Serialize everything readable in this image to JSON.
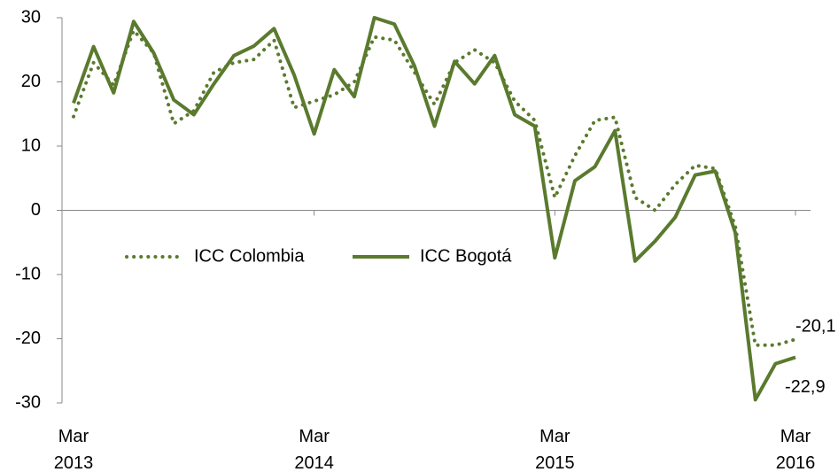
{
  "chart_data": {
    "type": "line",
    "categories": [
      "Mar 2013",
      null,
      null,
      null,
      null,
      null,
      null,
      null,
      null,
      null,
      null,
      null,
      "Mar 2014",
      null,
      null,
      null,
      null,
      null,
      null,
      null,
      null,
      null,
      null,
      null,
      "Mar 2015",
      null,
      null,
      null,
      null,
      null,
      null,
      null,
      null,
      null,
      null,
      null,
      "Mar 2016"
    ],
    "series": [
      {
        "name": "ICC Colombia",
        "color": "#5a7a2e",
        "style": "dotted",
        "values": [
          14.6,
          23,
          19.5,
          28,
          24.5,
          13.5,
          15.5,
          21.5,
          23,
          23.5,
          26.5,
          16,
          17,
          18,
          20,
          27,
          26.5,
          21.5,
          16.5,
          23,
          25,
          23,
          17,
          14,
          2,
          8.5,
          14,
          14.5,
          2,
          0,
          4,
          7,
          6.5,
          -2.5,
          -21,
          -21,
          -20.1
        ],
        "value_labels": [
          null,
          null,
          null,
          null,
          null,
          null,
          null,
          null,
          null,
          null,
          null,
          null,
          null,
          null,
          null,
          null,
          null,
          null,
          null,
          null,
          null,
          null,
          null,
          null,
          null,
          null,
          null,
          null,
          null,
          null,
          null,
          null,
          null,
          null,
          null,
          null,
          "-20,1"
        ]
      },
      {
        "name": "ICC Bogotá",
        "color": "#5a7a2e",
        "style": "solid",
        "values": [
          16.7,
          25.5,
          18.3,
          29.4,
          24.5,
          17.2,
          14.9,
          19.7,
          24.1,
          25.6,
          28.3,
          21.1,
          11.9,
          21.9,
          17.7,
          30,
          29,
          22.5,
          13.1,
          23.2,
          19.7,
          24.1,
          14.9,
          13.1,
          -7.4,
          4.6,
          6.8,
          12.4,
          -7.9,
          -4.8,
          -1.1,
          5.5,
          6.1,
          -3.5,
          -29.5,
          -23.9,
          -22.9
        ],
        "value_labels": [
          null,
          null,
          null,
          null,
          null,
          null,
          null,
          null,
          null,
          null,
          null,
          null,
          null,
          null,
          null,
          null,
          null,
          null,
          null,
          null,
          null,
          null,
          null,
          null,
          null,
          null,
          null,
          null,
          null,
          null,
          null,
          null,
          null,
          null,
          null,
          null,
          "-22,9"
        ]
      }
    ],
    "ylim": [
      -30,
      30
    ],
    "yticks": [
      -30,
      -20,
      -10,
      0,
      10,
      20,
      30
    ],
    "grid": false,
    "legend": "center-left"
  }
}
